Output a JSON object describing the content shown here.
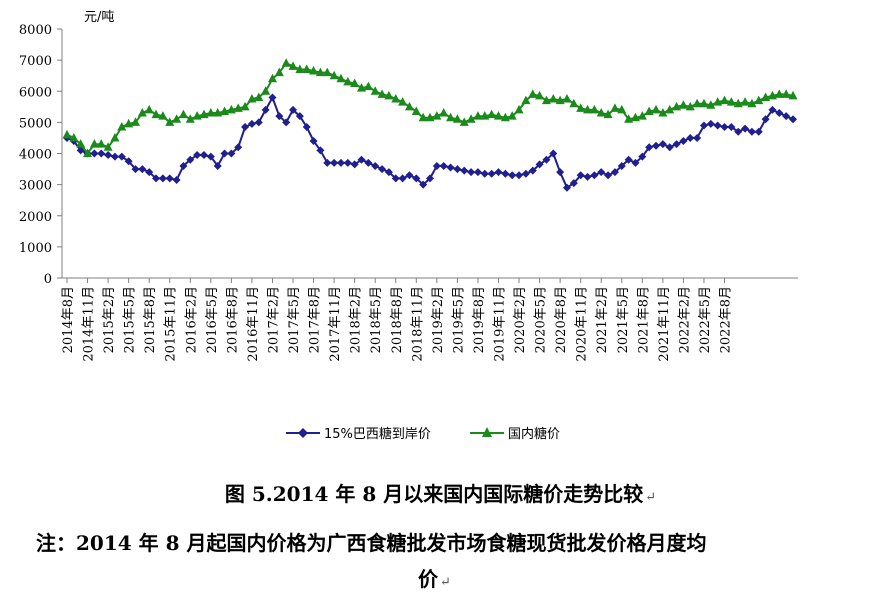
{
  "chart_data": {
    "type": "line",
    "ylabel": "元/吨",
    "ylim": [
      0,
      8000
    ],
    "yticks": [
      "0",
      "1000",
      "2000",
      "3000",
      "4000",
      "5000",
      "6000",
      "7000",
      "8000"
    ],
    "x_tick_labels": [
      "2014年8月",
      "2014年11月",
      "2015年2月",
      "2015年5月",
      "2015年8月",
      "2015年11月",
      "2016年2月",
      "2016年5月",
      "2016年8月",
      "2016年11月",
      "2017年2月",
      "2017年5月",
      "2017年8月",
      "2017年11月",
      "2018年2月",
      "2018年5月",
      "2018年8月",
      "2018年11月",
      "2019年2月",
      "2019年5月",
      "2019年8月",
      "2019年11月",
      "2020年2月",
      "2020年5月",
      "2020年8月",
      "2020年11月",
      "2021年2月",
      "2021年5月",
      "2021年8月",
      "2021年11月",
      "2022年2月",
      "2022年5月",
      "2022年8月"
    ],
    "grid": false,
    "legend_position": "bottom",
    "series": [
      {
        "name": "15%巴西糖到岸价",
        "color": "#1f1f8f",
        "marker": "diamond",
        "values": [
          4500,
          4400,
          4100,
          4000,
          4000,
          4000,
          3950,
          3900,
          3900,
          3750,
          3500,
          3500,
          3400,
          3200,
          3200,
          3200,
          3150,
          3600,
          3800,
          3950,
          3950,
          3900,
          3600,
          4000,
          4000,
          4200,
          4850,
          4950,
          5000,
          5400,
          5800,
          5200,
          5000,
          5400,
          5200,
          4850,
          4400,
          4100,
          3700,
          3700,
          3700,
          3700,
          3650,
          3800,
          3700,
          3600,
          3500,
          3400,
          3200,
          3200,
          3300,
          3200,
          3000,
          3200,
          3600,
          3600,
          3550,
          3500,
          3450,
          3400,
          3400,
          3350,
          3350,
          3400,
          3350,
          3300,
          3300,
          3350,
          3450,
          3650,
          3800,
          4000,
          3400,
          2900,
          3050,
          3300,
          3250,
          3300,
          3400,
          3300,
          3400,
          3600,
          3800,
          3700,
          3900,
          4200,
          4250,
          4300,
          4200,
          4300,
          4400,
          4500,
          4500,
          4900,
          4950,
          4900,
          4850,
          4850,
          4700,
          4800,
          4700,
          4700,
          5100,
          5400,
          5300,
          5200,
          5100
        ]
      },
      {
        "name": "国内糖价",
        "color": "#1a8a1a",
        "marker": "triangle",
        "values": [
          4600,
          4500,
          4300,
          4000,
          4300,
          4300,
          4200,
          4500,
          4850,
          4950,
          5000,
          5300,
          5400,
          5250,
          5200,
          5000,
          5100,
          5250,
          5100,
          5200,
          5250,
          5300,
          5300,
          5350,
          5400,
          5450,
          5500,
          5750,
          5800,
          6000,
          6400,
          6600,
          6900,
          6800,
          6700,
          6700,
          6650,
          6600,
          6600,
          6500,
          6400,
          6300,
          6250,
          6100,
          6150,
          6000,
          5900,
          5850,
          5750,
          5650,
          5500,
          5350,
          5150,
          5150,
          5200,
          5300,
          5150,
          5100,
          5000,
          5100,
          5200,
          5200,
          5250,
          5200,
          5150,
          5200,
          5400,
          5700,
          5900,
          5850,
          5700,
          5750,
          5700,
          5750,
          5600,
          5450,
          5400,
          5400,
          5300,
          5250,
          5450,
          5400,
          5100,
          5150,
          5200,
          5350,
          5400,
          5300,
          5400,
          5500,
          5550,
          5500,
          5600,
          5600,
          5550,
          5650,
          5700,
          5650,
          5600,
          5650,
          5600,
          5700,
          5800,
          5850,
          5900,
          5900,
          5850
        ]
      }
    ]
  },
  "caption": {
    "figure_title": "图 5.2014 年 8 月以来国内国际糖价走势比较",
    "note_line1": "注：2014 年 8 月起国内价格为广西食糖批发市场食糖现货批发价格月度均",
    "note_line2": "价",
    "return_mark": "↵"
  }
}
